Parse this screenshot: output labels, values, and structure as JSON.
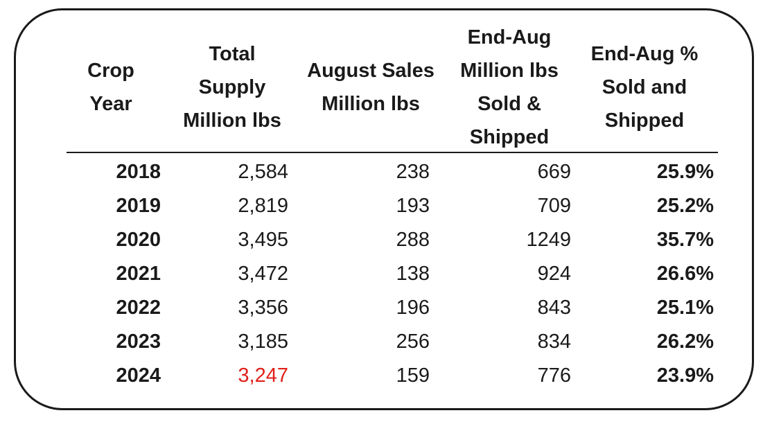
{
  "headers": [
    [
      "Crop",
      "Year"
    ],
    [
      "Total",
      "Supply",
      "Million lbs"
    ],
    [
      "August Sales",
      "Million lbs"
    ],
    [
      "End-Aug",
      "Million lbs",
      "Sold &",
      "Shipped"
    ],
    [
      "End-Aug %",
      "Sold and",
      "Shipped"
    ]
  ],
  "rows": [
    {
      "year": "2018",
      "supply": "2,584",
      "aug_sales": "238",
      "sold_shipped": "669",
      "pct": "25.9%"
    },
    {
      "year": "2019",
      "supply": "2,819",
      "aug_sales": "193",
      "sold_shipped": "709",
      "pct": "25.2%"
    },
    {
      "year": "2020",
      "supply": "3,495",
      "aug_sales": "288",
      "sold_shipped": "1249",
      "pct": "35.7%"
    },
    {
      "year": "2021",
      "supply": "3,472",
      "aug_sales": "138",
      "sold_shipped": "924",
      "pct": "26.6%"
    },
    {
      "year": "2022",
      "supply": "3,356",
      "aug_sales": "196",
      "sold_shipped": "843",
      "pct": "25.1%"
    },
    {
      "year": "2023",
      "supply": "3,185",
      "aug_sales": "256",
      "sold_shipped": "834",
      "pct": "26.2%"
    },
    {
      "year": "2024",
      "supply": "3,247",
      "aug_sales": "159",
      "sold_shipped": "776",
      "pct": "23.9%"
    }
  ],
  "colors": {
    "text": "#1a1a1a",
    "highlight": "#e0201b"
  },
  "highlight_cell": {
    "row": 6,
    "column": "supply"
  }
}
